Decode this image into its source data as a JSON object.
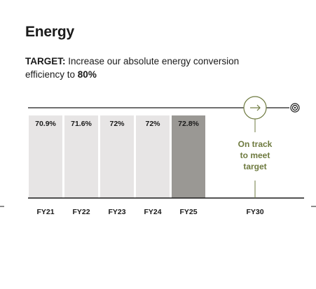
{
  "header": {
    "title": "Energy",
    "target_label": "TARGET:",
    "target_text": " Increase our absolute energy conversion efficiency to ",
    "target_value": "80%"
  },
  "annotation": {
    "lines": [
      "On track",
      "to meet",
      "target"
    ],
    "icon": "arrow-right-icon",
    "end_icon": "target-icon"
  },
  "colors": {
    "bar": "#e7e5e5",
    "bar_highlight": "#9a9894",
    "accent": "#6e7a3f",
    "axis": "#1a1a1a"
  },
  "chart_data": {
    "type": "bar",
    "categories": [
      "FY21",
      "FY22",
      "FY23",
      "FY24",
      "FY25",
      "FY30"
    ],
    "values": [
      70.9,
      71.6,
      72,
      72,
      72.8,
      null
    ],
    "value_labels": [
      "70.9%",
      "71.6%",
      "72%",
      "72%",
      "72.8%",
      ""
    ],
    "highlight_index": 4,
    "target_value": 80,
    "target_category": "FY30",
    "unit": "%",
    "grid": false
  }
}
